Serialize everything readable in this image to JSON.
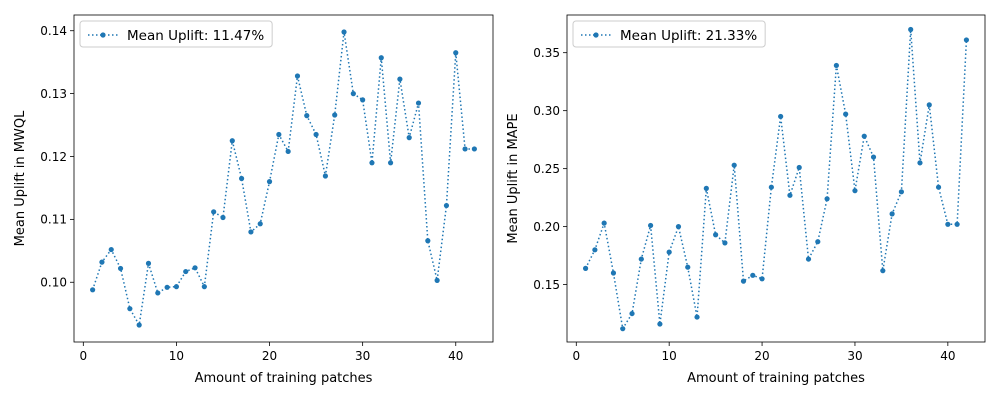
{
  "chart_data": [
    {
      "type": "line",
      "xlabel": "Amount of training patches",
      "ylabel": "Mean Uplift in MWQL",
      "xlim": [
        -1,
        44
      ],
      "ylim": [
        0.0905,
        0.1425
      ],
      "xticks": [
        0,
        10,
        20,
        30,
        40
      ],
      "xtick_labels": [
        "0",
        "10",
        "20",
        "30",
        "40"
      ],
      "yticks": [
        0.1,
        0.11,
        0.12,
        0.13,
        0.14
      ],
      "ytick_labels": [
        "0.10",
        "0.11",
        "0.12",
        "0.13",
        "0.14"
      ],
      "grid": false,
      "legend_position": "upper-left",
      "series": [
        {
          "name": "Mean Uplift: 11.47%",
          "color": "#1f77b4",
          "linestyle": "dotted",
          "marker": "circle",
          "x": [
            1,
            2,
            3,
            4,
            5,
            6,
            7,
            8,
            9,
            10,
            11,
            12,
            13,
            14,
            15,
            16,
            17,
            18,
            19,
            20,
            21,
            22,
            23,
            24,
            25,
            26,
            27,
            28,
            29,
            30,
            31,
            32,
            33,
            34,
            35,
            36,
            37,
            38,
            39,
            40,
            41,
            42
          ],
          "y": [
            0.0988,
            0.1032,
            0.1052,
            0.1022,
            0.0958,
            0.0932,
            0.103,
            0.0983,
            0.0992,
            0.0993,
            0.1017,
            0.1023,
            0.0993,
            0.1112,
            0.1103,
            0.1225,
            0.1165,
            0.108,
            0.1093,
            0.116,
            0.1235,
            0.1208,
            0.1328,
            0.1265,
            0.1235,
            0.1169,
            0.1266,
            0.1398,
            0.13,
            0.129,
            0.119,
            0.1357,
            0.119,
            0.1323,
            0.123,
            0.1285,
            0.1066,
            0.1003,
            0.1122,
            0.1365,
            0.1212,
            0.1212
          ]
        }
      ]
    },
    {
      "type": "line",
      "xlabel": "Amount of training patches",
      "ylabel": "Mean Uplift in MAPE",
      "xlim": [
        -1,
        44
      ],
      "ylim": [
        0.1005,
        0.3825
      ],
      "xticks": [
        0,
        10,
        20,
        30,
        40
      ],
      "xtick_labels": [
        "0",
        "10",
        "20",
        "30",
        "40"
      ],
      "yticks": [
        0.15,
        0.2,
        0.25,
        0.3,
        0.35
      ],
      "ytick_labels": [
        "0.15",
        "0.20",
        "0.25",
        "0.30",
        "0.35"
      ],
      "grid": false,
      "legend_position": "upper-left",
      "series": [
        {
          "name": "Mean Uplift: 21.33%",
          "color": "#1f77b4",
          "linestyle": "dotted",
          "marker": "circle",
          "x": [
            1,
            2,
            3,
            4,
            5,
            6,
            7,
            8,
            9,
            10,
            11,
            12,
            13,
            14,
            15,
            16,
            17,
            18,
            19,
            20,
            21,
            22,
            23,
            24,
            25,
            26,
            27,
            28,
            29,
            30,
            31,
            32,
            33,
            34,
            35,
            36,
            37,
            38,
            39,
            40,
            41,
            42
          ],
          "y": [
            0.164,
            0.18,
            0.203,
            0.16,
            0.112,
            0.125,
            0.172,
            0.201,
            0.116,
            0.178,
            0.2,
            0.165,
            0.122,
            0.233,
            0.193,
            0.186,
            0.253,
            0.153,
            0.158,
            0.155,
            0.234,
            0.295,
            0.227,
            0.251,
            0.172,
            0.187,
            0.224,
            0.339,
            0.297,
            0.231,
            0.278,
            0.26,
            0.162,
            0.211,
            0.23,
            0.37,
            0.255,
            0.305,
            0.234,
            0.202,
            0.202,
            0.361
          ]
        }
      ]
    }
  ]
}
